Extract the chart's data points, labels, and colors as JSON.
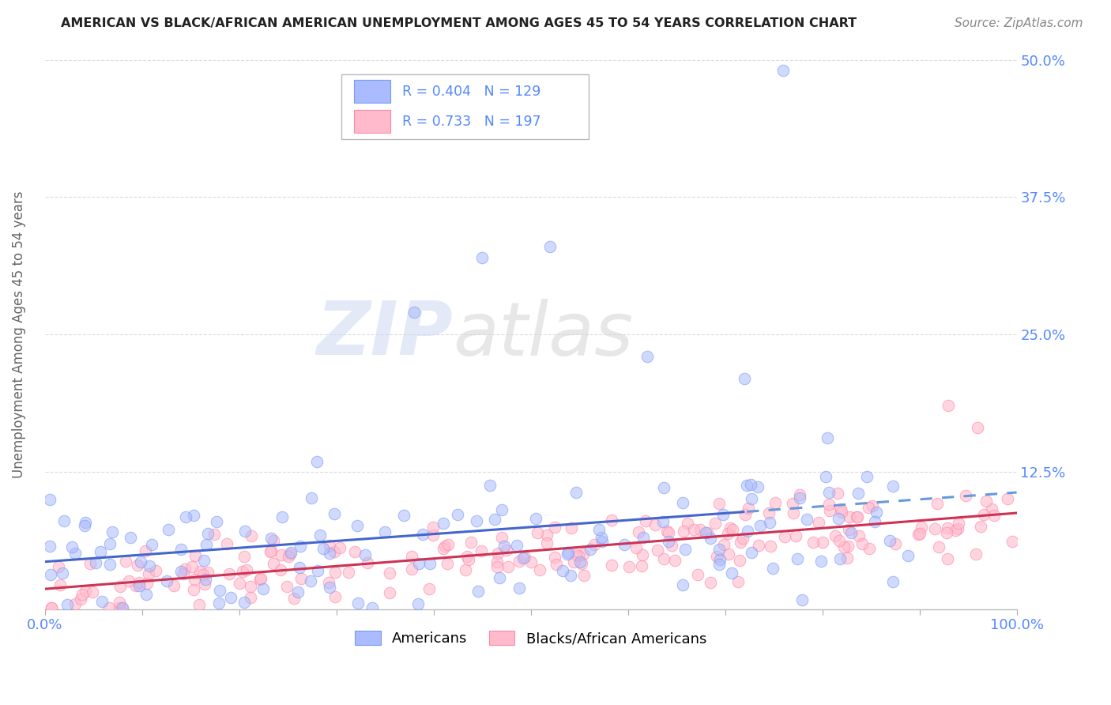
{
  "title": "AMERICAN VS BLACK/AFRICAN AMERICAN UNEMPLOYMENT AMONG AGES 45 TO 54 YEARS CORRELATION CHART",
  "source": "Source: ZipAtlas.com",
  "ylabel": "Unemployment Among Ages 45 to 54 years",
  "xlim": [
    0,
    100
  ],
  "ylim": [
    0,
    50
  ],
  "yticks": [
    0,
    12.5,
    25.0,
    37.5,
    50.0
  ],
  "xticks": [
    0,
    10,
    20,
    30,
    40,
    50,
    60,
    70,
    80,
    90,
    100
  ],
  "xtick_labels": [
    "0.0%",
    "",
    "",
    "",
    "",
    "",
    "",
    "",
    "",
    "",
    "100.0%"
  ],
  "ytick_labels": [
    "",
    "12.5%",
    "25.0%",
    "37.5%",
    "50.0%"
  ],
  "background_color": "#ffffff",
  "grid_color": "#cccccc",
  "blue_color_fill": "#aabbff",
  "blue_color_edge": "#7799ee",
  "pink_color_fill": "#ffbbcc",
  "pink_color_edge": "#ff88aa",
  "trend_blue_solid": "#4466cc",
  "trend_blue_dashed": "#6699dd",
  "trend_pink": "#cc3355",
  "legend_label_blue": "Americans",
  "legend_label_pink": "Blacks/African Americans",
  "blue_R": 0.404,
  "pink_R": 0.733,
  "blue_N": 129,
  "pink_N": 197,
  "title_color": "#222222",
  "tick_label_color": "#5588ff",
  "source_color": "#888888",
  "blue_seed": 42,
  "pink_seed": 99
}
